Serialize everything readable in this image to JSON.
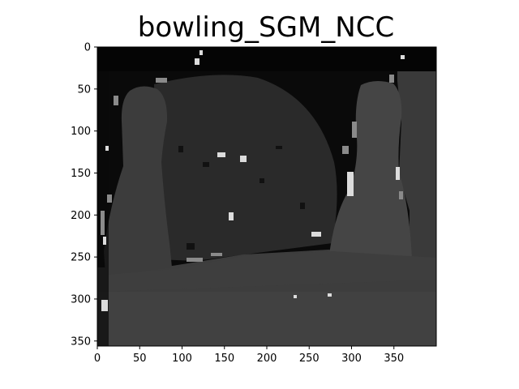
{
  "figure": {
    "title": "bowling_SGM_NCC",
    "image_width": 400,
    "image_height": 356,
    "x_ticks": [
      0,
      50,
      100,
      150,
      200,
      250,
      300,
      350
    ],
    "y_ticks": [
      0,
      50,
      100,
      150,
      200,
      250,
      300,
      350
    ],
    "colormap": "gray"
  }
}
